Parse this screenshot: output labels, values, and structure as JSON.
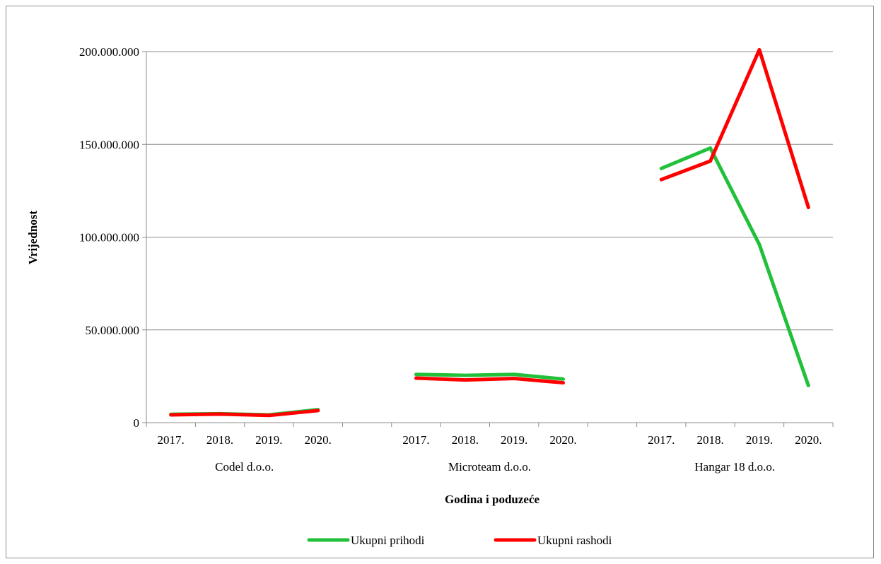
{
  "chart_data": {
    "type": "line",
    "ylabel": "Vrijednost",
    "xlabel": "Godina i poduzeće",
    "ylim": [
      0,
      200000000
    ],
    "yticks": [
      0,
      50000000,
      100000000,
      150000000,
      200000000
    ],
    "ytick_labels": [
      "0",
      "50.000.000",
      "100.000.000",
      "150.000.000",
      "200.000.000"
    ],
    "grid": true,
    "legend_position": "bottom",
    "groups": [
      {
        "label": "Codel d.o.o.",
        "years": [
          "2017.",
          "2018.",
          "2019.",
          "2020."
        ]
      },
      {
        "label": "Microteam d.o.o.",
        "years": [
          "2017.",
          "2018.",
          "2019.",
          "2020."
        ]
      },
      {
        "label": "Hangar 18 d.o.o.",
        "years": [
          "2017.",
          "2018.",
          "2019.",
          "2020."
        ]
      }
    ],
    "series": [
      {
        "name": "Ukupni prihodi",
        "color": "#22c03a",
        "values": [
          [
            4500000,
            4800000,
            4200000,
            7000000
          ],
          [
            26000000,
            25500000,
            26000000,
            23500000
          ],
          [
            137000000,
            148000000,
            96000000,
            20000000
          ]
        ]
      },
      {
        "name": "Ukupni rashodi",
        "color": "#ff0000",
        "values": [
          [
            4200000,
            4600000,
            3900000,
            6500000
          ],
          [
            24000000,
            23000000,
            23800000,
            21500000
          ],
          [
            131000000,
            141000000,
            201000000,
            116000000
          ]
        ]
      }
    ]
  }
}
